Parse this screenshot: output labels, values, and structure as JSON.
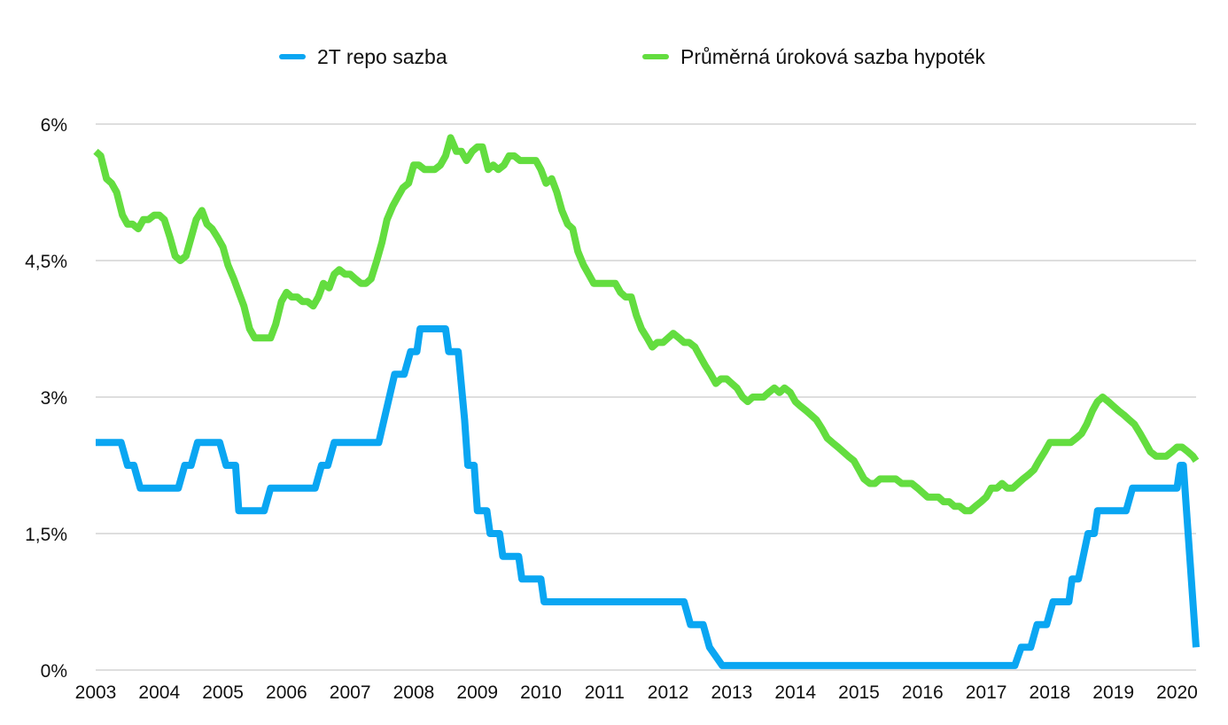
{
  "chart_data": {
    "type": "line",
    "title": "",
    "xlabel": "",
    "ylabel": "",
    "x_unit": "year",
    "xlim": [
      2003,
      2020.3
    ],
    "ylim": [
      0,
      6
    ],
    "yticks": [
      0,
      1.5,
      3,
      4.5,
      6
    ],
    "ytick_labels": [
      "0%",
      "1,5%",
      "3%",
      "4,5%",
      "6%"
    ],
    "xticks": [
      2003,
      2004,
      2005,
      2006,
      2007,
      2008,
      2009,
      2010,
      2011,
      2012,
      2013,
      2014,
      2015,
      2016,
      2017,
      2018,
      2019,
      2020
    ],
    "xtick_labels": [
      "2003",
      "2004",
      "2005",
      "2006",
      "2007",
      "2008",
      "2009",
      "2010",
      "2011",
      "2012",
      "2013",
      "2014",
      "2015",
      "2016",
      "2017",
      "2018",
      "2019",
      "2020"
    ],
    "grid": "horizontal",
    "legend_position": "top",
    "series": [
      {
        "name": "2T repo sazba",
        "color": "#0aa6f2",
        "step": true,
        "points": [
          [
            2003.0,
            2.5
          ],
          [
            2003.4,
            2.5
          ],
          [
            2003.5,
            2.25
          ],
          [
            2003.6,
            2.25
          ],
          [
            2003.7,
            2.0
          ],
          [
            2004.3,
            2.0
          ],
          [
            2004.4,
            2.25
          ],
          [
            2004.5,
            2.25
          ],
          [
            2004.6,
            2.5
          ],
          [
            2004.95,
            2.5
          ],
          [
            2005.05,
            2.25
          ],
          [
            2005.2,
            2.25
          ],
          [
            2005.25,
            1.75
          ],
          [
            2005.65,
            1.75
          ],
          [
            2005.75,
            2.0
          ],
          [
            2006.45,
            2.0
          ],
          [
            2006.55,
            2.25
          ],
          [
            2006.65,
            2.25
          ],
          [
            2006.75,
            2.5
          ],
          [
            2007.45,
            2.5
          ],
          [
            2007.7,
            3.25
          ],
          [
            2007.85,
            3.25
          ],
          [
            2007.95,
            3.5
          ],
          [
            2008.05,
            3.5
          ],
          [
            2008.1,
            3.75
          ],
          [
            2008.5,
            3.75
          ],
          [
            2008.55,
            3.5
          ],
          [
            2008.7,
            3.5
          ],
          [
            2008.8,
            2.75
          ],
          [
            2008.85,
            2.25
          ],
          [
            2008.95,
            2.25
          ],
          [
            2009.0,
            1.75
          ],
          [
            2009.15,
            1.75
          ],
          [
            2009.2,
            1.5
          ],
          [
            2009.35,
            1.5
          ],
          [
            2009.4,
            1.25
          ],
          [
            2009.65,
            1.25
          ],
          [
            2009.7,
            1.0
          ],
          [
            2010.0,
            1.0
          ],
          [
            2010.05,
            0.75
          ],
          [
            2012.25,
            0.75
          ],
          [
            2012.35,
            0.5
          ],
          [
            2012.55,
            0.5
          ],
          [
            2012.65,
            0.25
          ],
          [
            2012.85,
            0.05
          ],
          [
            2017.45,
            0.05
          ],
          [
            2017.55,
            0.25
          ],
          [
            2017.7,
            0.25
          ],
          [
            2017.8,
            0.5
          ],
          [
            2017.95,
            0.5
          ],
          [
            2018.05,
            0.75
          ],
          [
            2018.3,
            0.75
          ],
          [
            2018.35,
            1.0
          ],
          [
            2018.45,
            1.0
          ],
          [
            2018.6,
            1.5
          ],
          [
            2018.7,
            1.5
          ],
          [
            2018.75,
            1.75
          ],
          [
            2019.2,
            1.75
          ],
          [
            2019.3,
            2.0
          ],
          [
            2020.0,
            2.0
          ],
          [
            2020.05,
            2.25
          ],
          [
            2020.1,
            2.25
          ],
          [
            2020.15,
            1.75
          ],
          [
            2020.3,
            0.25
          ]
        ]
      },
      {
        "name": "Průměrná úroková sazba hypoték",
        "color": "#63dd3f",
        "step": false,
        "points": [
          [
            2003.0,
            5.7
          ],
          [
            2003.08,
            5.65
          ],
          [
            2003.17,
            5.4
          ],
          [
            2003.25,
            5.35
          ],
          [
            2003.33,
            5.25
          ],
          [
            2003.42,
            5.0
          ],
          [
            2003.5,
            4.9
          ],
          [
            2003.58,
            4.9
          ],
          [
            2003.67,
            4.85
          ],
          [
            2003.75,
            4.95
          ],
          [
            2003.83,
            4.95
          ],
          [
            2003.92,
            5.0
          ],
          [
            2004.0,
            5.0
          ],
          [
            2004.08,
            4.95
          ],
          [
            2004.17,
            4.75
          ],
          [
            2004.25,
            4.55
          ],
          [
            2004.33,
            4.5
          ],
          [
            2004.42,
            4.55
          ],
          [
            2004.5,
            4.75
          ],
          [
            2004.58,
            4.95
          ],
          [
            2004.67,
            5.05
          ],
          [
            2004.75,
            4.9
          ],
          [
            2004.83,
            4.85
          ],
          [
            2004.92,
            4.75
          ],
          [
            2005.0,
            4.65
          ],
          [
            2005.08,
            4.45
          ],
          [
            2005.17,
            4.3
          ],
          [
            2005.25,
            4.15
          ],
          [
            2005.33,
            4.0
          ],
          [
            2005.42,
            3.75
          ],
          [
            2005.5,
            3.65
          ],
          [
            2005.58,
            3.65
          ],
          [
            2005.67,
            3.65
          ],
          [
            2005.75,
            3.65
          ],
          [
            2005.83,
            3.8
          ],
          [
            2005.92,
            4.05
          ],
          [
            2006.0,
            4.15
          ],
          [
            2006.08,
            4.1
          ],
          [
            2006.17,
            4.1
          ],
          [
            2006.25,
            4.05
          ],
          [
            2006.33,
            4.05
          ],
          [
            2006.42,
            4.0
          ],
          [
            2006.5,
            4.1
          ],
          [
            2006.58,
            4.25
          ],
          [
            2006.67,
            4.2
          ],
          [
            2006.75,
            4.35
          ],
          [
            2006.83,
            4.4
          ],
          [
            2006.92,
            4.35
          ],
          [
            2007.0,
            4.35
          ],
          [
            2007.08,
            4.3
          ],
          [
            2007.17,
            4.25
          ],
          [
            2007.25,
            4.25
          ],
          [
            2007.33,
            4.3
          ],
          [
            2007.42,
            4.5
          ],
          [
            2007.5,
            4.7
          ],
          [
            2007.58,
            4.95
          ],
          [
            2007.67,
            5.1
          ],
          [
            2007.75,
            5.2
          ],
          [
            2007.83,
            5.3
          ],
          [
            2007.92,
            5.35
          ],
          [
            2008.0,
            5.55
          ],
          [
            2008.08,
            5.55
          ],
          [
            2008.17,
            5.5
          ],
          [
            2008.25,
            5.5
          ],
          [
            2008.33,
            5.5
          ],
          [
            2008.42,
            5.55
          ],
          [
            2008.5,
            5.65
          ],
          [
            2008.58,
            5.85
          ],
          [
            2008.67,
            5.7
          ],
          [
            2008.75,
            5.7
          ],
          [
            2008.83,
            5.6
          ],
          [
            2008.92,
            5.7
          ],
          [
            2009.0,
            5.75
          ],
          [
            2009.08,
            5.75
          ],
          [
            2009.17,
            5.5
          ],
          [
            2009.25,
            5.55
          ],
          [
            2009.33,
            5.5
          ],
          [
            2009.42,
            5.55
          ],
          [
            2009.5,
            5.65
          ],
          [
            2009.58,
            5.65
          ],
          [
            2009.67,
            5.6
          ],
          [
            2009.75,
            5.6
          ],
          [
            2009.83,
            5.6
          ],
          [
            2009.92,
            5.6
          ],
          [
            2010.0,
            5.5
          ],
          [
            2010.08,
            5.35
          ],
          [
            2010.17,
            5.4
          ],
          [
            2010.25,
            5.25
          ],
          [
            2010.33,
            5.05
          ],
          [
            2010.42,
            4.9
          ],
          [
            2010.5,
            4.85
          ],
          [
            2010.58,
            4.6
          ],
          [
            2010.67,
            4.45
          ],
          [
            2010.75,
            4.35
          ],
          [
            2010.83,
            4.25
          ],
          [
            2010.92,
            4.25
          ],
          [
            2011.0,
            4.25
          ],
          [
            2011.08,
            4.25
          ],
          [
            2011.17,
            4.25
          ],
          [
            2011.25,
            4.15
          ],
          [
            2011.33,
            4.1
          ],
          [
            2011.42,
            4.1
          ],
          [
            2011.5,
            3.9
          ],
          [
            2011.58,
            3.75
          ],
          [
            2011.67,
            3.65
          ],
          [
            2011.75,
            3.55
          ],
          [
            2011.83,
            3.6
          ],
          [
            2011.92,
            3.6
          ],
          [
            2012.0,
            3.65
          ],
          [
            2012.08,
            3.7
          ],
          [
            2012.17,
            3.65
          ],
          [
            2012.25,
            3.6
          ],
          [
            2012.33,
            3.6
          ],
          [
            2012.42,
            3.55
          ],
          [
            2012.5,
            3.45
          ],
          [
            2012.58,
            3.35
          ],
          [
            2012.67,
            3.25
          ],
          [
            2012.75,
            3.15
          ],
          [
            2012.83,
            3.2
          ],
          [
            2012.92,
            3.2
          ],
          [
            2013.0,
            3.15
          ],
          [
            2013.08,
            3.1
          ],
          [
            2013.17,
            3.0
          ],
          [
            2013.25,
            2.95
          ],
          [
            2013.33,
            3.0
          ],
          [
            2013.42,
            3.0
          ],
          [
            2013.5,
            3.0
          ],
          [
            2013.58,
            3.05
          ],
          [
            2013.67,
            3.1
          ],
          [
            2013.75,
            3.05
          ],
          [
            2013.83,
            3.1
          ],
          [
            2013.92,
            3.05
          ],
          [
            2014.0,
            2.95
          ],
          [
            2014.08,
            2.9
          ],
          [
            2014.17,
            2.85
          ],
          [
            2014.25,
            2.8
          ],
          [
            2014.33,
            2.75
          ],
          [
            2014.42,
            2.65
          ],
          [
            2014.5,
            2.55
          ],
          [
            2014.58,
            2.5
          ],
          [
            2014.67,
            2.45
          ],
          [
            2014.75,
            2.4
          ],
          [
            2014.83,
            2.35
          ],
          [
            2014.92,
            2.3
          ],
          [
            2015.0,
            2.2
          ],
          [
            2015.08,
            2.1
          ],
          [
            2015.17,
            2.05
          ],
          [
            2015.25,
            2.05
          ],
          [
            2015.33,
            2.1
          ],
          [
            2015.42,
            2.1
          ],
          [
            2015.5,
            2.1
          ],
          [
            2015.58,
            2.1
          ],
          [
            2015.67,
            2.05
          ],
          [
            2015.75,
            2.05
          ],
          [
            2015.83,
            2.05
          ],
          [
            2015.92,
            2.0
          ],
          [
            2016.0,
            1.95
          ],
          [
            2016.08,
            1.9
          ],
          [
            2016.17,
            1.9
          ],
          [
            2016.25,
            1.9
          ],
          [
            2016.33,
            1.85
          ],
          [
            2016.42,
            1.85
          ],
          [
            2016.5,
            1.8
          ],
          [
            2016.58,
            1.8
          ],
          [
            2016.67,
            1.75
          ],
          [
            2016.75,
            1.75
          ],
          [
            2016.83,
            1.8
          ],
          [
            2016.92,
            1.85
          ],
          [
            2017.0,
            1.9
          ],
          [
            2017.08,
            2.0
          ],
          [
            2017.17,
            2.0
          ],
          [
            2017.25,
            2.05
          ],
          [
            2017.33,
            2.0
          ],
          [
            2017.42,
            2.0
          ],
          [
            2017.5,
            2.05
          ],
          [
            2017.58,
            2.1
          ],
          [
            2017.67,
            2.15
          ],
          [
            2017.75,
            2.2
          ],
          [
            2017.83,
            2.3
          ],
          [
            2017.92,
            2.4
          ],
          [
            2018.0,
            2.5
          ],
          [
            2018.08,
            2.5
          ],
          [
            2018.17,
            2.5
          ],
          [
            2018.25,
            2.5
          ],
          [
            2018.33,
            2.5
          ],
          [
            2018.42,
            2.55
          ],
          [
            2018.5,
            2.6
          ],
          [
            2018.58,
            2.7
          ],
          [
            2018.67,
            2.85
          ],
          [
            2018.75,
            2.95
          ],
          [
            2018.83,
            3.0
          ],
          [
            2018.92,
            2.95
          ],
          [
            2019.0,
            2.9
          ],
          [
            2019.08,
            2.85
          ],
          [
            2019.17,
            2.8
          ],
          [
            2019.25,
            2.75
          ],
          [
            2019.33,
            2.7
          ],
          [
            2019.42,
            2.6
          ],
          [
            2019.5,
            2.5
          ],
          [
            2019.58,
            2.4
          ],
          [
            2019.67,
            2.35
          ],
          [
            2019.75,
            2.35
          ],
          [
            2019.83,
            2.35
          ],
          [
            2019.92,
            2.4
          ],
          [
            2020.0,
            2.45
          ],
          [
            2020.08,
            2.45
          ],
          [
            2020.17,
            2.4
          ],
          [
            2020.25,
            2.35
          ],
          [
            2020.3,
            2.3
          ]
        ]
      }
    ]
  }
}
